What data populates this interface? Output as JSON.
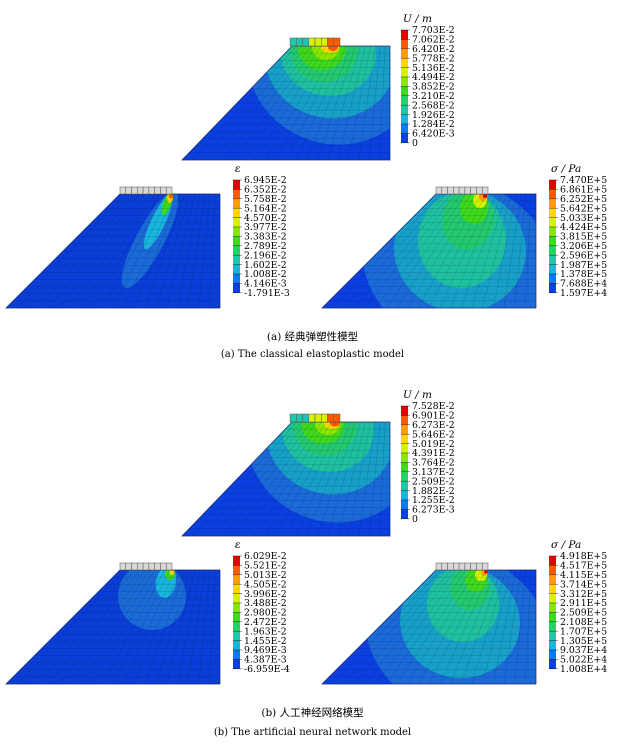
{
  "plots": [
    {
      "id": "a-displacement",
      "kind": "dam",
      "quantity": "U",
      "legend_title": "U / m",
      "legend_values": [
        "7.703E-2",
        "7.062E-2",
        "6.420E-2",
        "5.778E-2",
        "5.136E-2",
        "4.494E-2",
        "3.852E-2",
        "3.210E-2",
        "2.568E-2",
        "1.926E-2",
        "1.284E-2",
        "6.420E-3",
        "0"
      ]
    },
    {
      "id": "a-strain",
      "kind": "slope",
      "quantity": "epsilon",
      "legend_title": "ε",
      "legend_values": [
        "6.945E-2",
        "6.352E-2",
        "5.758E-2",
        "5.164E-2",
        "4.570E-2",
        "3.977E-2",
        "3.383E-2",
        "2.789E-2",
        "2.196E-2",
        "1.602E-2",
        "1.008E-2",
        "4.146E-3",
        "-1.791E-3"
      ]
    },
    {
      "id": "a-stress",
      "kind": "slope",
      "quantity": "sigma",
      "legend_title": "σ / Pa",
      "legend_values": [
        "7.470E+5",
        "6.861E+5",
        "6.252E+5",
        "5.642E+5",
        "5.033E+5",
        "4.424E+5",
        "3.815E+5",
        "3.206E+5",
        "2.596E+5",
        "1.987E+5",
        "1.378E+5",
        "7.688E+4",
        "1.597E+4"
      ]
    },
    {
      "id": "b-displacement",
      "kind": "dam",
      "quantity": "U",
      "legend_title": "U / m",
      "legend_values": [
        "7.528E-2",
        "6.901E-2",
        "6.273E-2",
        "5.646E-2",
        "5.019E-2",
        "4.391E-2",
        "3.764E-2",
        "3.137E-2",
        "2.509E-2",
        "1.882E-2",
        "1.255E-2",
        "6.273E-3",
        "0"
      ]
    },
    {
      "id": "b-strain",
      "kind": "slope",
      "quantity": "epsilon",
      "legend_title": "ε",
      "legend_values": [
        "6.029E-2",
        "5.521E-2",
        "5.013E-2",
        "4.505E-2",
        "3.996E-2",
        "3.488E-2",
        "2.980E-2",
        "2.472E-2",
        "1.963E-2",
        "1.455E-2",
        "9.469E-3",
        "4.387E-3",
        "-6.959E-4"
      ]
    },
    {
      "id": "b-stress",
      "kind": "slope",
      "quantity": "sigma",
      "legend_title": "σ / Pa",
      "legend_values": [
        "4.918E+5",
        "4.517E+5",
        "4.115E+5",
        "3.714E+5",
        "3.312E+5",
        "2.911E+5",
        "2.509E+5",
        "2.108E+5",
        "1.707E+5",
        "1.305E+5",
        "9.037E+4",
        "5.022E+4",
        "1.008E+4"
      ]
    }
  ],
  "legend_colors": [
    "#e60000",
    "#ff5a00",
    "#ff9e00",
    "#ffd500",
    "#d5f200",
    "#8be600",
    "#3fd81e",
    "#23d364",
    "#1fc8a8",
    "#18b5dc",
    "#1078f0",
    "#0a40e0",
    "#0a24c8"
  ],
  "captions": {
    "a_cn": "(a) 经典弹塑性模型",
    "a_en": "(a) The classical elastoplastic model",
    "b_cn": "(b) 人工神经网络模型",
    "b_en": "(b) The artificial neural network model"
  }
}
